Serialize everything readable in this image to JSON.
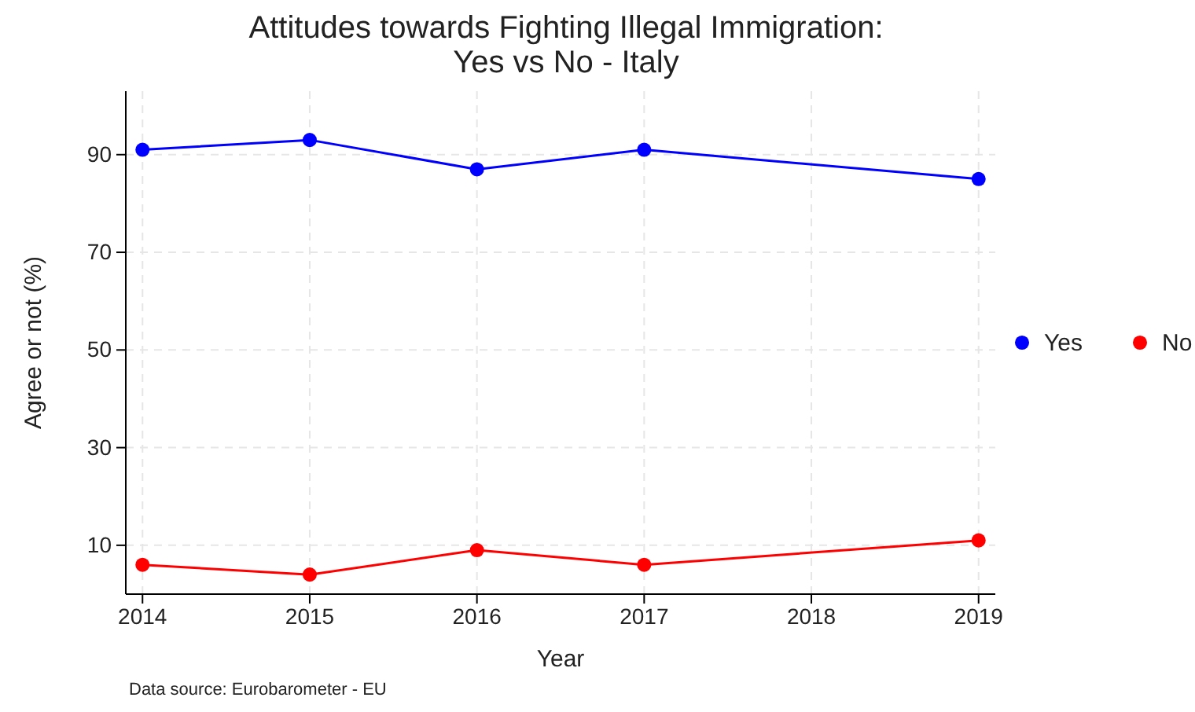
{
  "chart_data": {
    "type": "line",
    "title": "Attitudes towards Fighting Illegal Immigration:\nYes vs No - Italy",
    "xlabel": "Year",
    "ylabel": "Agree or not (%)",
    "x": [
      2014,
      2015,
      2016,
      2017,
      2019
    ],
    "series": [
      {
        "name": "Yes",
        "color": "#0000ff",
        "values": [
          91,
          93,
          87,
          91,
          85
        ]
      },
      {
        "name": "No",
        "color": "#ff0000",
        "values": [
          6,
          4,
          9,
          6,
          11
        ]
      }
    ],
    "xlim": [
      2013.9,
      2019.1
    ],
    "xticks": [
      2014,
      2015,
      2016,
      2017,
      2018,
      2019
    ],
    "ylim": [
      0,
      103
    ],
    "yticks": [
      10,
      30,
      50,
      70,
      90
    ],
    "grid": true,
    "legend": "right",
    "marker": "circle",
    "line_style": "solid",
    "annotations": [
      "Data source: Eurobarometer - EU"
    ]
  }
}
